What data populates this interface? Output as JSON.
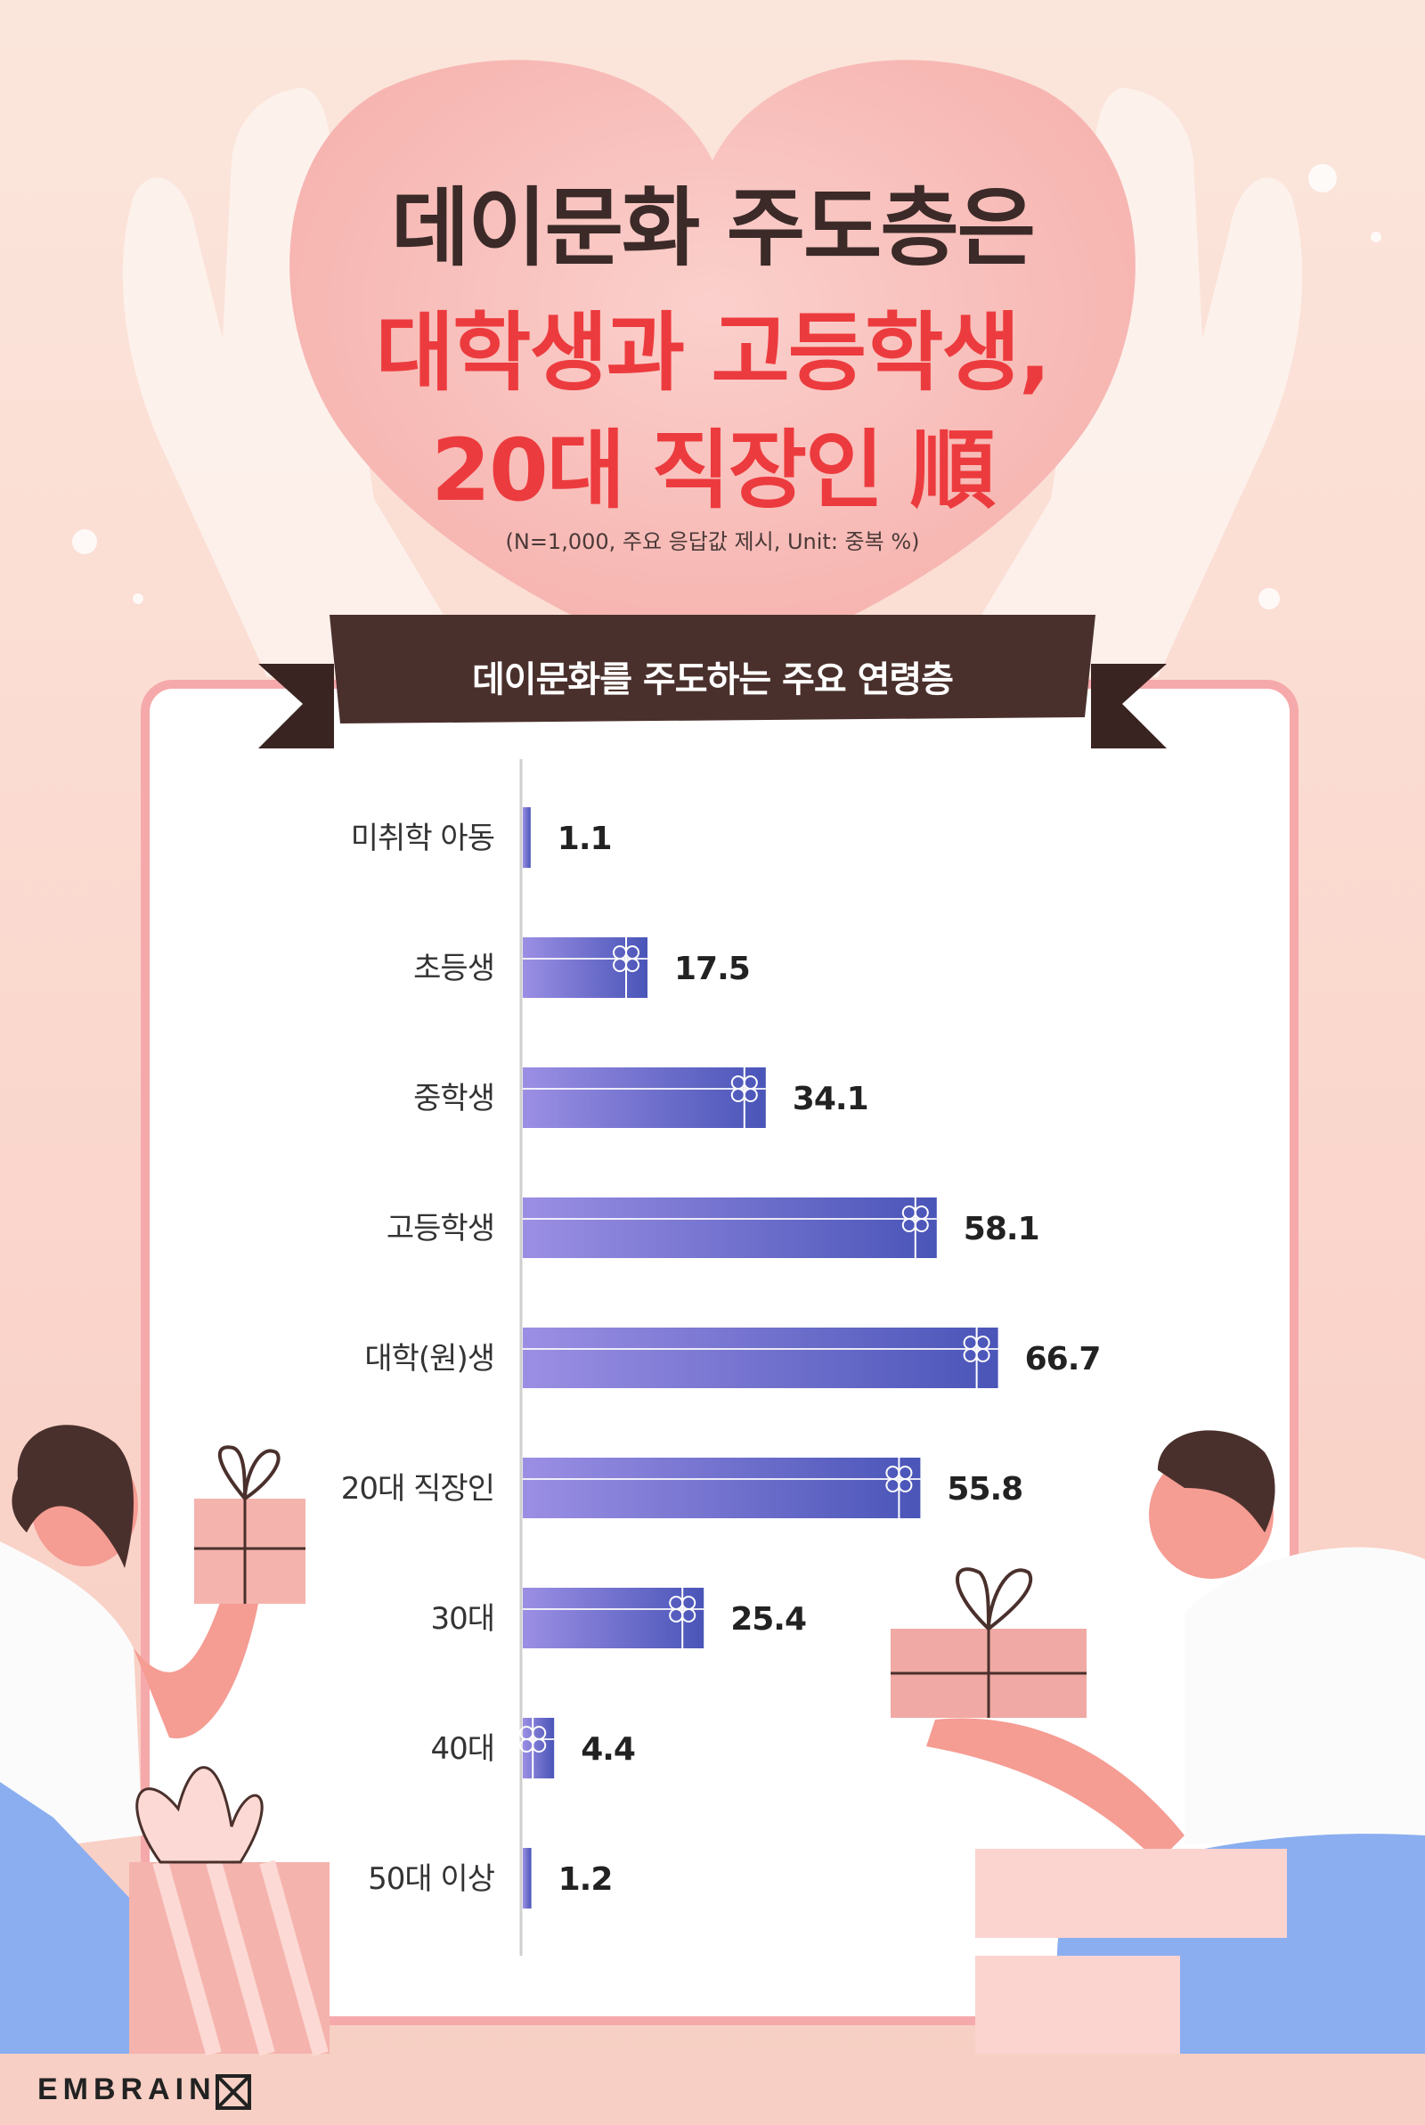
{
  "title": {
    "line1": "데이문화 주도층은",
    "line2": "대학생과 고등학생,",
    "line3": "20대 직장인 順"
  },
  "note": "(N=1,000, 주요 응답값 제시, Unit: 중복 %)",
  "banner": "데이문화를 주도하는 주요 연령층",
  "brand": "EMBRAIN",
  "colors": {
    "bar_start": "#9b8fe4",
    "bar_end": "#4a55b8",
    "title_red": "#ec3b3e",
    "title_dark": "#3b2a28",
    "banner": "#4a302c",
    "card_border": "#f6a9ab"
  },
  "chart_data": {
    "type": "bar",
    "orientation": "horizontal",
    "categories": [
      "미취학 아동",
      "초등생",
      "중학생",
      "고등학생",
      "대학(원)생",
      "20대 직장인",
      "30대",
      "40대",
      "50대 이상"
    ],
    "values": [
      1.1,
      17.5,
      34.1,
      58.1,
      66.7,
      55.8,
      25.4,
      4.4,
      1.2
    ],
    "value_labels": [
      "1.1",
      "17.5",
      "34.1",
      "58.1",
      "66.7",
      "55.8",
      "25.4",
      "4.4",
      "1.2"
    ],
    "xlim": [
      0,
      100
    ],
    "grid": false
  }
}
